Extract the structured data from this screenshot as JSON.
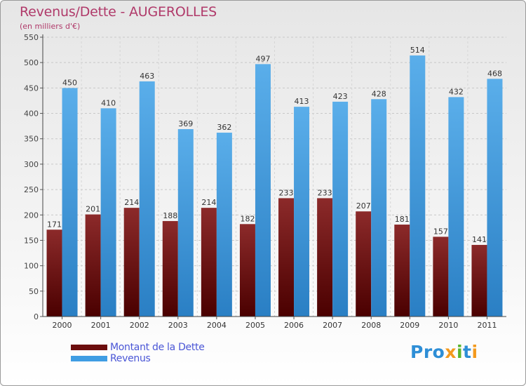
{
  "header": {
    "title": "Revenus/Dette - AUGEROLLES",
    "subtitle": "(en milliers d'€)"
  },
  "legend": [
    {
      "label": "Montant de la Dette",
      "color": "#6b0d0d"
    },
    {
      "label": "Revenus",
      "color": "#3f9de3"
    }
  ],
  "logo": {
    "text": "Proxiti"
  },
  "chart_data": {
    "type": "bar",
    "categories": [
      "2000",
      "2001",
      "2002",
      "2003",
      "2004",
      "2005",
      "2006",
      "2007",
      "2008",
      "2009",
      "2010",
      "2011"
    ],
    "series": [
      {
        "name": "Montant de la Dette",
        "color": "#6b0d0d",
        "values": [
          171,
          201,
          214,
          188,
          214,
          182,
          233,
          233,
          207,
          181,
          157,
          141
        ]
      },
      {
        "name": "Revenus",
        "color": "#3f9de3",
        "values": [
          450,
          410,
          463,
          369,
          362,
          497,
          413,
          423,
          428,
          514,
          432,
          468
        ]
      }
    ],
    "yticks": [
      0,
      50,
      100,
      150,
      200,
      250,
      300,
      350,
      400,
      450,
      500,
      550
    ],
    "ylim": [
      0,
      550
    ],
    "grid": true,
    "data_labels": true,
    "legend_position": "bottom-left"
  }
}
